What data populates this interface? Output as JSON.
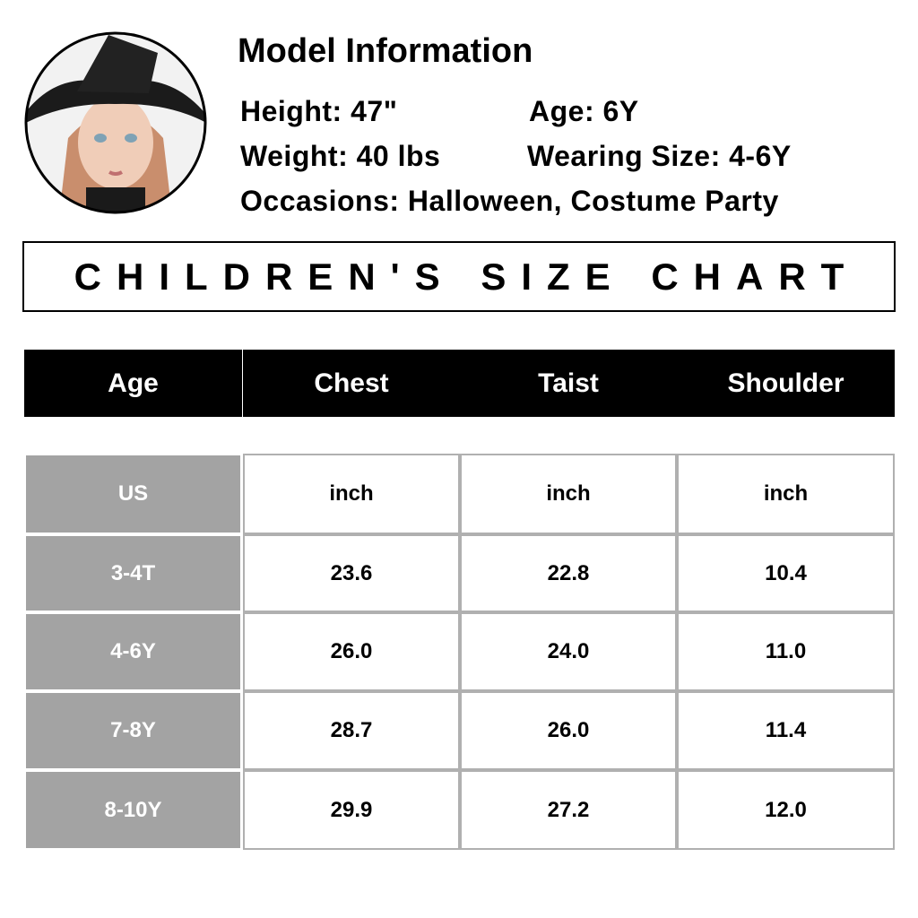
{
  "model_info": {
    "title": "Model Information",
    "height": "Height: 47\"",
    "age": "Age: 6Y",
    "weight": "Weight: 40 lbs",
    "wearing_size": "Wearing Size: 4-6Y",
    "occasions": "Occasions: Halloween, Costume Party"
  },
  "size_chart": {
    "title": "CHILDREN'S SIZE CHART"
  },
  "table": {
    "header": [
      "Age",
      "Chest",
      "Taist",
      "Shoulder"
    ],
    "rows": [
      [
        "US",
        "inch",
        "inch",
        "inch"
      ],
      [
        "3-4T",
        "23.6",
        "22.8",
        "10.4"
      ],
      [
        "4-6Y",
        "26.0",
        "24.0",
        "11.0"
      ],
      [
        "7-8Y",
        "28.7",
        "26.0",
        "11.4"
      ],
      [
        "8-10Y",
        "29.9",
        "27.2",
        "12.0"
      ]
    ]
  }
}
